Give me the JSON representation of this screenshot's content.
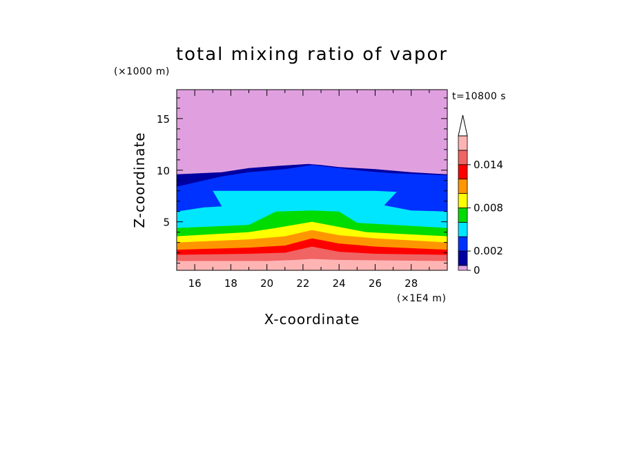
{
  "chart_data": {
    "type": "heatmap",
    "title": "total mixing ratio of vapor",
    "xlabel": "X-coordinate",
    "ylabel": "Z-coordinate",
    "x_unit": "(×1E4 m)",
    "y_unit": "(×1000 m)",
    "time_label": "t=10800 s",
    "xlim": [
      15,
      30
    ],
    "ylim": [
      0.3,
      17.8
    ],
    "x_ticks": [
      "16",
      "18",
      "20",
      "22",
      "24",
      "26",
      "28"
    ],
    "x_tick_values": [
      16,
      18,
      20,
      22,
      24,
      26,
      28
    ],
    "y_ticks": [
      "5",
      "10",
      "15"
    ],
    "y_tick_values": [
      5,
      10,
      15
    ],
    "colorbar": {
      "levels": [
        0,
        0.001,
        0.002,
        0.004,
        0.006,
        0.008,
        0.01,
        0.012,
        0.014,
        0.016
      ],
      "colors": [
        "#e0a0e0",
        "#0000a0",
        "#0032ff",
        "#00e6ff",
        "#00dc00",
        "#ffff00",
        "#ff9600",
        "#ff0000",
        "#f06464",
        "#ffb4b4"
      ],
      "tick_labels": [
        "0",
        "0.002",
        "0.008",
        "0.014"
      ],
      "tick_values": [
        0,
        0.002,
        0.008,
        0.014
      ],
      "extend": "max"
    },
    "contour_tops": [
      {
        "level": "pink_top",
        "points": [
          [
            15,
            1.2
          ],
          [
            20,
            1.2
          ],
          [
            21.5,
            1.3
          ],
          [
            22.5,
            1.4
          ],
          [
            24,
            1.3
          ],
          [
            30,
            1.2
          ]
        ]
      },
      {
        "level": "salmon_top",
        "points": [
          [
            15,
            1.8
          ],
          [
            19,
            1.9
          ],
          [
            21,
            2.0
          ],
          [
            22.5,
            2.6
          ],
          [
            24,
            2.1
          ],
          [
            26,
            1.9
          ],
          [
            30,
            1.8
          ]
        ]
      },
      {
        "level": "red_top",
        "points": [
          [
            15,
            2.3
          ],
          [
            19,
            2.5
          ],
          [
            21,
            2.7
          ],
          [
            22.5,
            3.4
          ],
          [
            24,
            2.9
          ],
          [
            26,
            2.6
          ],
          [
            30,
            2.3
          ]
        ]
      },
      {
        "level": "orange_top",
        "points": [
          [
            15,
            3.0
          ],
          [
            19,
            3.3
          ],
          [
            21,
            3.6
          ],
          [
            22.5,
            4.2
          ],
          [
            24,
            3.7
          ],
          [
            26,
            3.4
          ],
          [
            30,
            3.0
          ]
        ]
      },
      {
        "level": "yellow_top",
        "points": [
          [
            15,
            3.6
          ],
          [
            19,
            4.0
          ],
          [
            20.5,
            4.4
          ],
          [
            22.5,
            5.0
          ],
          [
            24,
            4.5
          ],
          [
            25.5,
            4.0
          ],
          [
            30,
            3.6
          ]
        ]
      },
      {
        "level": "green_top",
        "points": [
          [
            15,
            4.4
          ],
          [
            19,
            4.7
          ],
          [
            20.5,
            6.0
          ],
          [
            22.5,
            6.1
          ],
          [
            24,
            6.0
          ],
          [
            25,
            4.9
          ],
          [
            30,
            4.4
          ]
        ]
      },
      {
        "level": "cyan_top",
        "points": [
          [
            15,
            6.0
          ],
          [
            16.5,
            6.4
          ],
          [
            17.5,
            6.5
          ],
          [
            17.0,
            8.0
          ],
          [
            20,
            8.0
          ],
          [
            23,
            8.0
          ],
          [
            26,
            8.0
          ],
          [
            27.2,
            7.9
          ],
          [
            26.5,
            6.6
          ],
          [
            28,
            6.1
          ],
          [
            30,
            6.0
          ]
        ]
      },
      {
        "level": "blue_top",
        "points": [
          [
            15,
            8.4
          ],
          [
            16,
            8.8
          ],
          [
            17.5,
            9.4
          ],
          [
            19,
            9.8
          ],
          [
            21,
            10.1
          ],
          [
            22.5,
            10.5
          ],
          [
            24,
            10.2
          ],
          [
            25.5,
            9.9
          ],
          [
            27,
            9.7
          ],
          [
            28.5,
            9.6
          ],
          [
            30,
            9.5
          ]
        ]
      },
      {
        "level": "navy_top",
        "points": [
          [
            15,
            9.6
          ],
          [
            17.5,
            9.8
          ],
          [
            19,
            10.2
          ],
          [
            20.5,
            10.4
          ],
          [
            22.3,
            10.6
          ],
          [
            23,
            10.5
          ],
          [
            24,
            10.3
          ],
          [
            26,
            10.1
          ],
          [
            28,
            9.8
          ],
          [
            30,
            9.6
          ]
        ]
      }
    ]
  }
}
